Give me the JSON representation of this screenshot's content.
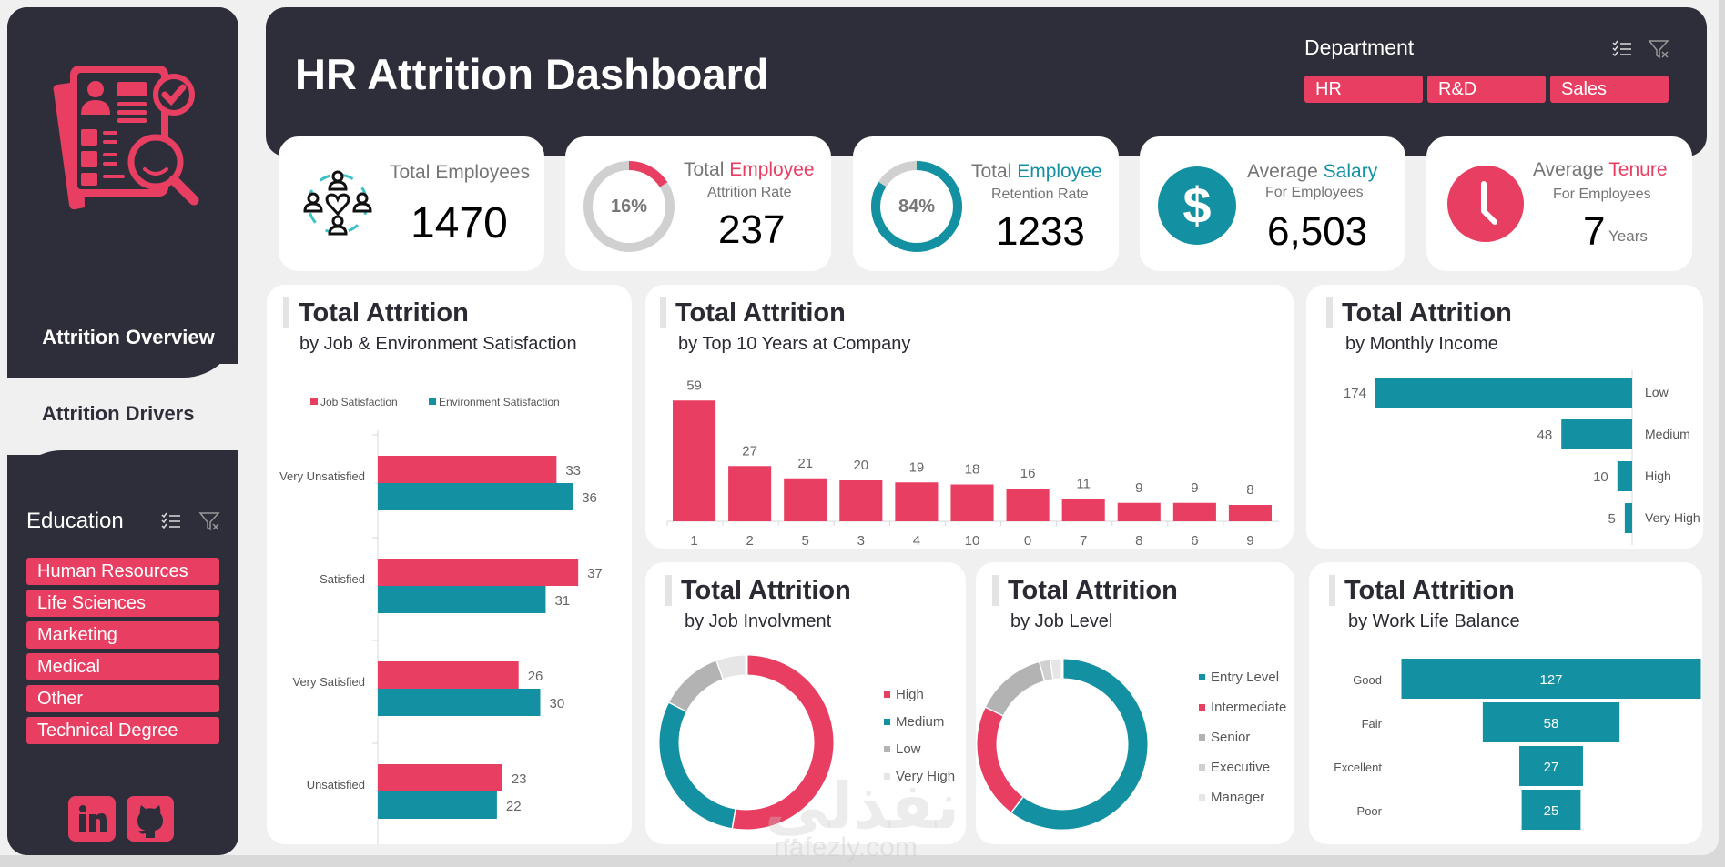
{
  "header": {
    "title": "HR Attrition Dashboard",
    "department_label": "Department",
    "department_options": [
      "HR",
      "R&D",
      "Sales"
    ]
  },
  "sidebar": {
    "nav": [
      {
        "label": "Attrition Overview",
        "active": false
      },
      {
        "label": "Attrition Drivers",
        "active": true
      }
    ],
    "education_label": "Education",
    "education_options": [
      "Human Resources",
      "Life Sciences",
      "Marketing",
      "Medical",
      "Other",
      "Technical Degree"
    ],
    "social": [
      "linkedin-icon",
      "github-icon"
    ]
  },
  "colors": {
    "primary_red": "#e83e62",
    "teal": "#1490a3",
    "dark": "#2e2e3a",
    "gray": "#b3b3b3",
    "light_gray": "#d9d9d9"
  },
  "kpis": {
    "total_employees": {
      "label": "Total Employees",
      "value": "1470",
      "icon": "people-heart-icon"
    },
    "attrition": {
      "label_plain": "Total ",
      "label_accent": "Employee",
      "sub": "Attrition Rate",
      "value": "237",
      "percent_label": "16%",
      "percent": 16
    },
    "retention": {
      "label_plain": "Total ",
      "label_accent": "Employee",
      "sub": "Retention Rate",
      "value": "1233",
      "percent_label": "84%",
      "percent": 84
    },
    "salary": {
      "label_plain": "Average ",
      "label_accent": "Salary",
      "sub": "For Employees",
      "value": "6,503",
      "icon": "dollar-icon"
    },
    "tenure": {
      "label_plain": "Average ",
      "label_accent": "Tenure",
      "sub": "For Employees",
      "value": "7",
      "unit": "Years",
      "icon": "clock-icon"
    }
  },
  "chart_data": [
    {
      "id": "satisfaction",
      "type": "bar",
      "orientation": "horizontal",
      "title": "Total Attrition",
      "subtitle": "by Job & Environment Satisfaction",
      "categories": [
        "Very Unsatisfied",
        "Satisfied",
        "Very Satisfied",
        "Unsatisfied"
      ],
      "series": [
        {
          "name": "Job Satisfaction",
          "color": "#e83e62",
          "values": [
            33,
            37,
            26,
            23
          ]
        },
        {
          "name": "Environment Satisfaction",
          "color": "#1490a3",
          "values": [
            36,
            31,
            30,
            22
          ]
        }
      ],
      "legend": "top",
      "xlim": [
        0,
        40
      ]
    },
    {
      "id": "years",
      "type": "bar",
      "title": "Total Attrition",
      "subtitle": "by Top 10 Years at Company",
      "categories": [
        "1",
        "2",
        "5",
        "3",
        "4",
        "10",
        "0",
        "7",
        "8",
        "6",
        "9"
      ],
      "values": [
        59,
        27,
        21,
        20,
        19,
        18,
        16,
        11,
        9,
        9,
        8
      ],
      "color": "#e83e62",
      "ylim": [
        0,
        60
      ]
    },
    {
      "id": "income",
      "type": "bar",
      "orientation": "horizontal-reversed",
      "title": "Total Attrition",
      "subtitle": "by Monthly Income",
      "categories": [
        "Low",
        "Medium",
        "High",
        "Very High"
      ],
      "values": [
        174,
        48,
        10,
        5
      ],
      "color": "#1490a3",
      "xlim": [
        0,
        174
      ]
    },
    {
      "id": "involvement",
      "type": "pie",
      "donut": true,
      "title": "Total Attrition",
      "subtitle": "by Job Involvment",
      "categories": [
        "High",
        "Medium",
        "Low",
        "Very High"
      ],
      "values": [
        125,
        71,
        28,
        13
      ],
      "colors": [
        "#e83e62",
        "#1490a3",
        "#b3b3b3",
        "#e6e6e6"
      ],
      "legend": "right"
    },
    {
      "id": "level",
      "type": "pie",
      "donut": true,
      "title": "Total Attrition",
      "subtitle": "by Job Level",
      "categories": [
        "Entry Level",
        "Intermediate",
        "Senior",
        "Executive",
        "Manager"
      ],
      "values": [
        143,
        52,
        32,
        5,
        5
      ],
      "colors": [
        "#1490a3",
        "#e83e62",
        "#b3b3b3",
        "#d0d0d0",
        "#e6e6e6"
      ],
      "legend": "right"
    },
    {
      "id": "worklife",
      "type": "bar",
      "orientation": "funnel",
      "title": "Total Attrition",
      "subtitle": "by Work Life Balance",
      "categories": [
        "Good",
        "Fair",
        "Excellent",
        "Poor"
      ],
      "values": [
        127,
        58,
        27,
        25
      ],
      "color": "#1490a3"
    }
  ],
  "watermark": {
    "text": "نفذلي",
    "url_text": "nafezly.com"
  }
}
